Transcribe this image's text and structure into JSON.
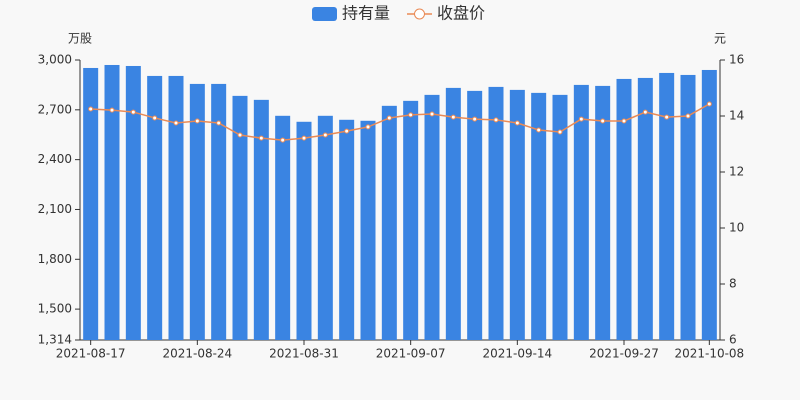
{
  "chart_data": {
    "type": "bar_line",
    "ylabel": "万股",
    "y2label": "元",
    "categories": [
      "2021-08-17",
      null,
      null,
      null,
      null,
      "2021-08-24",
      null,
      null,
      null,
      null,
      "2021-08-31",
      null,
      null,
      null,
      null,
      "2021-09-07",
      null,
      null,
      null,
      null,
      "2021-09-14",
      null,
      null,
      null,
      null,
      "2021-09-27",
      null,
      null,
      null,
      "2021-10-08"
    ],
    "series": [
      {
        "name": "持有量",
        "type": "bar",
        "color": "#3a84e2",
        "axis": "y",
        "values": [
          2952,
          2970,
          2964,
          2904,
          2904,
          2856,
          2856,
          2784,
          2760,
          2664,
          2628,
          2664,
          2640,
          2634,
          2724,
          2754,
          2790,
          2832,
          2814,
          2838,
          2820,
          2802,
          2790,
          2850,
          2844,
          2886,
          2892,
          2922,
          2910,
          2940
        ]
      },
      {
        "name": "收盘价",
        "type": "line",
        "color": "#ea8a55",
        "axis": "y2",
        "values": [
          14.25,
          14.21,
          14.14,
          13.93,
          13.75,
          13.82,
          13.75,
          13.32,
          13.21,
          13.14,
          13.21,
          13.32,
          13.46,
          13.61,
          13.93,
          14.04,
          14.07,
          13.96,
          13.89,
          13.86,
          13.75,
          13.5,
          13.43,
          13.89,
          13.82,
          13.82,
          14.14,
          13.96,
          14.0,
          14.43
        ]
      }
    ],
    "ylim": [
      1314,
      3000
    ],
    "yticks": [
      {
        "value": 1314,
        "label": "1,314"
      },
      {
        "value": 1500,
        "label": "1,500"
      },
      {
        "value": 1800,
        "label": "1,800"
      },
      {
        "value": 2100,
        "label": "2,100"
      },
      {
        "value": 2400,
        "label": "2,400"
      },
      {
        "value": 2700,
        "label": "2,700"
      },
      {
        "value": 3000,
        "label": "3,000"
      }
    ],
    "y2lim": [
      6,
      16
    ],
    "y2ticks": [
      6,
      8,
      10,
      12,
      14,
      16
    ],
    "grid": false,
    "legend": "top"
  }
}
